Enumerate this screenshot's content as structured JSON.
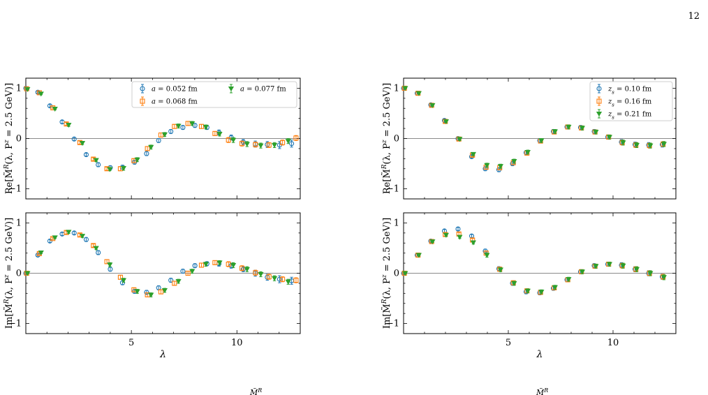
{
  "page": {
    "number": "12"
  },
  "legend_left": [
    {
      "label": "a = 0.052 fm",
      "color": "#1f77b4",
      "marker": "circle"
    },
    {
      "label": "a = 0.068 fm",
      "color": "#ff7f0e",
      "marker": "square"
    },
    {
      "label": "a = 0.077 fm",
      "color": "#2ca02c",
      "marker": "triangle-down"
    }
  ],
  "legend_right": [
    {
      "label": "z_s = 0.10 fm",
      "color": "#1f77b4",
      "marker": "circle"
    },
    {
      "label": "z_s = 0.16 fm",
      "color": "#ff7f0e",
      "marker": "square"
    },
    {
      "label": "z_s = 0.21 fm",
      "color": "#2ca02c",
      "marker": "triangle-down"
    }
  ],
  "caption_fragments": [
    "M̃",
    "R",
    "M̃",
    "R"
  ],
  "chart_data": [
    {
      "id": "left-top",
      "type": "scatter",
      "ylabel": "Re[M̃^R(λ, P^z = 2.5 GeV)]",
      "xlabel": "",
      "xlim": [
        0,
        13
      ],
      "ylim": [
        -1.2,
        1.2
      ],
      "xticks": [
        5,
        10
      ],
      "yticks": [
        -1,
        0,
        1
      ],
      "legend": "top-right",
      "series": [
        {
          "name": "a = 0.052 fm",
          "color": "#1f77b4",
          "marker": "circle",
          "x": [
            0,
            0.57,
            1.14,
            1.72,
            2.29,
            2.86,
            3.43,
            4.0,
            4.58,
            5.15,
            5.72,
            6.29,
            6.87,
            7.44,
            8.01,
            8.58,
            9.15,
            9.73,
            10.3,
            10.87,
            11.44,
            12.02,
            12.59
          ],
          "y": [
            1.0,
            0.92,
            0.65,
            0.33,
            -0.01,
            -0.32,
            -0.52,
            -0.58,
            -0.57,
            -0.47,
            -0.3,
            -0.04,
            0.14,
            0.22,
            0.26,
            0.22,
            0.12,
            0.02,
            -0.07,
            -0.11,
            -0.12,
            -0.13,
            -0.1
          ],
          "err": [
            0.01,
            0.02,
            0.03,
            0.03,
            0.03,
            0.03,
            0.04,
            0.04,
            0.04,
            0.04,
            0.04,
            0.04,
            0.04,
            0.04,
            0.04,
            0.04,
            0.05,
            0.05,
            0.05,
            0.06,
            0.06,
            0.07,
            0.07
          ]
        },
        {
          "name": "a = 0.068 fm",
          "color": "#ff7f0e",
          "marker": "square",
          "x": [
            0.04,
            0.64,
            1.28,
            1.92,
            2.56,
            3.2,
            3.84,
            4.48,
            5.12,
            5.76,
            6.4,
            7.04,
            7.68,
            8.32,
            8.96,
            9.6,
            10.24,
            10.88,
            11.52,
            12.16,
            12.8
          ],
          "y": [
            0.99,
            0.91,
            0.61,
            0.29,
            -0.08,
            -0.41,
            -0.6,
            -0.6,
            -0.44,
            -0.2,
            0.07,
            0.24,
            0.3,
            0.24,
            0.1,
            -0.03,
            -0.1,
            -0.12,
            -0.13,
            -0.08,
            0.01
          ],
          "err": [
            0.01,
            0.02,
            0.02,
            0.03,
            0.03,
            0.03,
            0.03,
            0.04,
            0.04,
            0.04,
            0.04,
            0.04,
            0.04,
            0.04,
            0.04,
            0.05,
            0.05,
            0.05,
            0.05,
            0.05,
            0.05
          ]
        },
        {
          "name": "a = 0.077 fm",
          "color": "#2ca02c",
          "marker": "triangle-down",
          "x": [
            0.08,
            0.72,
            1.38,
            2.03,
            2.68,
            3.33,
            3.98,
            4.63,
            5.28,
            5.93,
            6.58,
            7.23,
            7.88,
            8.53,
            9.18,
            9.83,
            10.48,
            11.13,
            11.78,
            12.43
          ],
          "y": [
            0.98,
            0.89,
            0.59,
            0.27,
            -0.09,
            -0.43,
            -0.61,
            -0.59,
            -0.42,
            -0.17,
            0.08,
            0.25,
            0.3,
            0.23,
            0.09,
            -0.03,
            -0.11,
            -0.14,
            -0.13,
            -0.05
          ],
          "err": [
            0.01,
            0.02,
            0.02,
            0.03,
            0.03,
            0.03,
            0.03,
            0.04,
            0.04,
            0.04,
            0.04,
            0.04,
            0.04,
            0.04,
            0.04,
            0.05,
            0.05,
            0.05,
            0.05,
            0.05
          ]
        }
      ]
    },
    {
      "id": "left-bottom",
      "type": "scatter",
      "ylabel": "Im[M̃^R(λ, P^z = 2.5 GeV)]",
      "xlabel": "λ",
      "xlim": [
        0,
        13
      ],
      "ylim": [
        -1.2,
        1.2
      ],
      "xticks": [
        5,
        10
      ],
      "yticks": [
        -1,
        0,
        1
      ],
      "series": [
        {
          "name": "a = 0.052 fm",
          "color": "#1f77b4",
          "marker": "circle",
          "x": [
            0,
            0.57,
            1.14,
            1.72,
            2.29,
            2.86,
            3.43,
            4.0,
            4.58,
            5.15,
            5.72,
            6.29,
            6.87,
            7.44,
            8.01,
            8.58,
            9.15,
            9.73,
            10.3,
            10.87,
            11.44,
            12.02,
            12.59
          ],
          "y": [
            0.0,
            0.36,
            0.64,
            0.78,
            0.8,
            0.67,
            0.41,
            0.08,
            -0.19,
            -0.36,
            -0.38,
            -0.29,
            -0.14,
            0.04,
            0.15,
            0.19,
            0.19,
            0.15,
            0.08,
            0.0,
            -0.08,
            -0.12,
            -0.15
          ],
          "err": [
            0.01,
            0.02,
            0.03,
            0.03,
            0.03,
            0.04,
            0.04,
            0.04,
            0.04,
            0.04,
            0.04,
            0.04,
            0.04,
            0.04,
            0.04,
            0.04,
            0.05,
            0.05,
            0.05,
            0.06,
            0.06,
            0.07,
            0.07
          ]
        },
        {
          "name": "a = 0.068 fm",
          "color": "#ff7f0e",
          "marker": "square",
          "x": [
            0.04,
            0.64,
            1.28,
            1.92,
            2.56,
            3.2,
            3.84,
            4.48,
            5.12,
            5.76,
            6.4,
            7.04,
            7.68,
            8.32,
            8.96,
            9.6,
            10.24,
            10.88,
            11.52,
            12.16,
            12.8
          ],
          "y": [
            0.0,
            0.39,
            0.69,
            0.81,
            0.76,
            0.55,
            0.23,
            -0.08,
            -0.33,
            -0.43,
            -0.37,
            -0.2,
            0.0,
            0.16,
            0.21,
            0.18,
            0.1,
            0.01,
            -0.07,
            -0.12,
            -0.14
          ],
          "err": [
            0.01,
            0.02,
            0.02,
            0.03,
            0.03,
            0.03,
            0.04,
            0.04,
            0.04,
            0.04,
            0.04,
            0.04,
            0.04,
            0.04,
            0.04,
            0.05,
            0.05,
            0.05,
            0.05,
            0.05,
            0.05
          ]
        },
        {
          "name": "a = 0.077 fm",
          "color": "#2ca02c",
          "marker": "triangle-down",
          "x": [
            0.08,
            0.72,
            1.38,
            2.03,
            2.68,
            3.33,
            3.98,
            4.63,
            5.28,
            5.93,
            6.58,
            7.23,
            7.88,
            8.53,
            9.18,
            9.83,
            10.48,
            11.13,
            11.78,
            12.43
          ],
          "y": [
            0.0,
            0.41,
            0.71,
            0.82,
            0.74,
            0.5,
            0.17,
            -0.14,
            -0.36,
            -0.43,
            -0.34,
            -0.16,
            0.04,
            0.18,
            0.21,
            0.16,
            0.08,
            -0.02,
            -0.1,
            -0.17
          ],
          "err": [
            0.01,
            0.02,
            0.02,
            0.03,
            0.03,
            0.03,
            0.04,
            0.04,
            0.04,
            0.04,
            0.04,
            0.04,
            0.04,
            0.04,
            0.04,
            0.05,
            0.05,
            0.05,
            0.05,
            0.05
          ]
        }
      ]
    },
    {
      "id": "right-top",
      "type": "scatter",
      "ylabel": "Re[M̃^R(λ, P^z = 2.5 GeV)]",
      "xlabel": "",
      "xlim": [
        0,
        13
      ],
      "ylim": [
        -1.2,
        1.2
      ],
      "xticks": [
        5,
        10
      ],
      "yticks": [
        -1,
        0,
        1
      ],
      "legend": "top-right",
      "series": [
        {
          "name": "z_s = 0.10 fm",
          "color": "#1f77b4",
          "marker": "circle",
          "x": [
            0,
            0.65,
            1.3,
            1.95,
            2.6,
            3.25,
            3.9,
            4.55,
            5.2,
            5.85,
            6.5,
            7.15,
            7.8,
            8.45,
            9.1,
            9.75,
            10.4,
            11.05,
            11.7,
            12.35
          ],
          "y": [
            1.0,
            0.9,
            0.67,
            0.36,
            0.0,
            -0.36,
            -0.6,
            -0.62,
            -0.5,
            -0.28,
            -0.04,
            0.14,
            0.23,
            0.22,
            0.14,
            0.03,
            -0.07,
            -0.12,
            -0.13,
            -0.12
          ],
          "err": [
            0.01,
            0.02,
            0.02,
            0.03,
            0.03,
            0.03,
            0.04,
            0.04,
            0.04,
            0.04,
            0.04,
            0.04,
            0.04,
            0.04,
            0.04,
            0.04,
            0.05,
            0.05,
            0.05,
            0.05
          ]
        },
        {
          "name": "z_s = 0.16 fm",
          "color": "#ff7f0e",
          "marker": "square",
          "x": [
            0.04,
            0.69,
            1.34,
            1.99,
            2.64,
            3.29,
            3.94,
            4.59,
            5.24,
            5.89,
            6.54,
            7.19,
            7.84,
            8.49,
            9.14,
            9.79,
            10.44,
            11.09,
            11.74,
            12.39
          ],
          "y": [
            1.0,
            0.9,
            0.66,
            0.34,
            -0.01,
            -0.33,
            -0.57,
            -0.58,
            -0.48,
            -0.29,
            -0.05,
            0.13,
            0.23,
            0.21,
            0.13,
            0.03,
            -0.08,
            -0.13,
            -0.14,
            -0.11
          ],
          "err": [
            0.01,
            0.02,
            0.02,
            0.03,
            0.03,
            0.03,
            0.04,
            0.04,
            0.04,
            0.04,
            0.04,
            0.04,
            0.04,
            0.04,
            0.04,
            0.04,
            0.05,
            0.05,
            0.05,
            0.05
          ]
        },
        {
          "name": "z_s = 0.21 fm",
          "color": "#2ca02c",
          "marker": "triangle-down",
          "x": [
            0.08,
            0.73,
            1.38,
            2.03,
            2.68,
            3.33,
            3.98,
            4.63,
            5.28,
            5.93,
            6.58,
            7.23,
            7.88,
            8.53,
            9.18,
            9.83,
            10.48,
            11.13,
            11.78,
            12.43
          ],
          "y": [
            1.0,
            0.9,
            0.66,
            0.34,
            -0.01,
            -0.31,
            -0.53,
            -0.55,
            -0.45,
            -0.27,
            -0.04,
            0.14,
            0.23,
            0.21,
            0.13,
            0.03,
            -0.08,
            -0.13,
            -0.14,
            -0.11
          ],
          "err": [
            0.01,
            0.02,
            0.02,
            0.03,
            0.03,
            0.03,
            0.04,
            0.04,
            0.04,
            0.04,
            0.04,
            0.04,
            0.04,
            0.04,
            0.04,
            0.04,
            0.05,
            0.05,
            0.05,
            0.05
          ]
        }
      ]
    },
    {
      "id": "right-bottom",
      "type": "scatter",
      "ylabel": "Im[M̃^R(λ, P^z = 2.5 GeV)]",
      "xlabel": "λ",
      "xlim": [
        0,
        13
      ],
      "ylim": [
        -1.2,
        1.2
      ],
      "xticks": [
        5,
        10
      ],
      "yticks": [
        -1,
        0,
        1
      ],
      "series": [
        {
          "name": "z_s = 0.10 fm",
          "color": "#1f77b4",
          "marker": "circle",
          "x": [
            0,
            0.65,
            1.3,
            1.95,
            2.6,
            3.25,
            3.9,
            4.55,
            5.2,
            5.85,
            6.5,
            7.15,
            7.8,
            8.45,
            9.1,
            9.75,
            10.4,
            11.05,
            11.7,
            12.35
          ],
          "y": [
            0.0,
            0.36,
            0.64,
            0.84,
            0.88,
            0.74,
            0.44,
            0.09,
            -0.2,
            -0.37,
            -0.39,
            -0.3,
            -0.13,
            0.03,
            0.15,
            0.18,
            0.16,
            0.08,
            0.0,
            -0.07
          ],
          "err": [
            0.01,
            0.02,
            0.02,
            0.03,
            0.03,
            0.03,
            0.04,
            0.04,
            0.04,
            0.04,
            0.04,
            0.04,
            0.04,
            0.04,
            0.04,
            0.04,
            0.05,
            0.05,
            0.05,
            0.05
          ]
        },
        {
          "name": "z_s = 0.16 fm",
          "color": "#ff7f0e",
          "marker": "square",
          "x": [
            0.04,
            0.69,
            1.34,
            1.99,
            2.64,
            3.29,
            3.94,
            4.59,
            5.24,
            5.89,
            6.54,
            7.19,
            7.84,
            8.49,
            9.14,
            9.79,
            10.44,
            11.09,
            11.74,
            12.39
          ],
          "y": [
            0.0,
            0.36,
            0.63,
            0.77,
            0.78,
            0.66,
            0.4,
            0.08,
            -0.19,
            -0.35,
            -0.38,
            -0.29,
            -0.13,
            0.03,
            0.14,
            0.18,
            0.15,
            0.08,
            0.0,
            -0.07
          ],
          "err": [
            0.01,
            0.02,
            0.02,
            0.03,
            0.03,
            0.03,
            0.04,
            0.04,
            0.04,
            0.04,
            0.04,
            0.04,
            0.04,
            0.04,
            0.04,
            0.04,
            0.05,
            0.05,
            0.05,
            0.05
          ]
        },
        {
          "name": "z_s = 0.21 fm",
          "color": "#2ca02c",
          "marker": "triangle-down",
          "x": [
            0.08,
            0.73,
            1.38,
            2.03,
            2.68,
            3.33,
            3.98,
            4.63,
            5.28,
            5.93,
            6.58,
            7.23,
            7.88,
            8.53,
            9.18,
            9.83,
            10.48,
            11.13,
            11.78,
            12.43
          ],
          "y": [
            0.0,
            0.36,
            0.63,
            0.76,
            0.72,
            0.61,
            0.36,
            0.07,
            -0.2,
            -0.35,
            -0.37,
            -0.28,
            -0.12,
            0.03,
            0.14,
            0.18,
            0.15,
            0.08,
            0.0,
            -0.08
          ],
          "err": [
            0.01,
            0.02,
            0.02,
            0.03,
            0.03,
            0.03,
            0.04,
            0.04,
            0.04,
            0.04,
            0.04,
            0.04,
            0.04,
            0.04,
            0.04,
            0.04,
            0.05,
            0.05,
            0.05,
            0.05
          ]
        }
      ]
    }
  ]
}
